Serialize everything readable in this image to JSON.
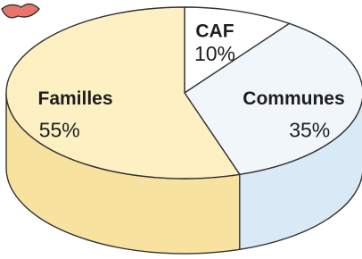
{
  "chart_data": {
    "type": "pie3d",
    "categories": [
      "CAF",
      "Communes",
      "Familles"
    ],
    "values": [
      10,
      35,
      55
    ],
    "value_labels": [
      "10%",
      "35%",
      "55%"
    ],
    "colors": [
      "#ffffff",
      "#f1f6fb",
      "#fdf1c4"
    ],
    "side_colors": [
      "#f4f4f4",
      "#d9e9f6",
      "#f8e2a0"
    ]
  }
}
